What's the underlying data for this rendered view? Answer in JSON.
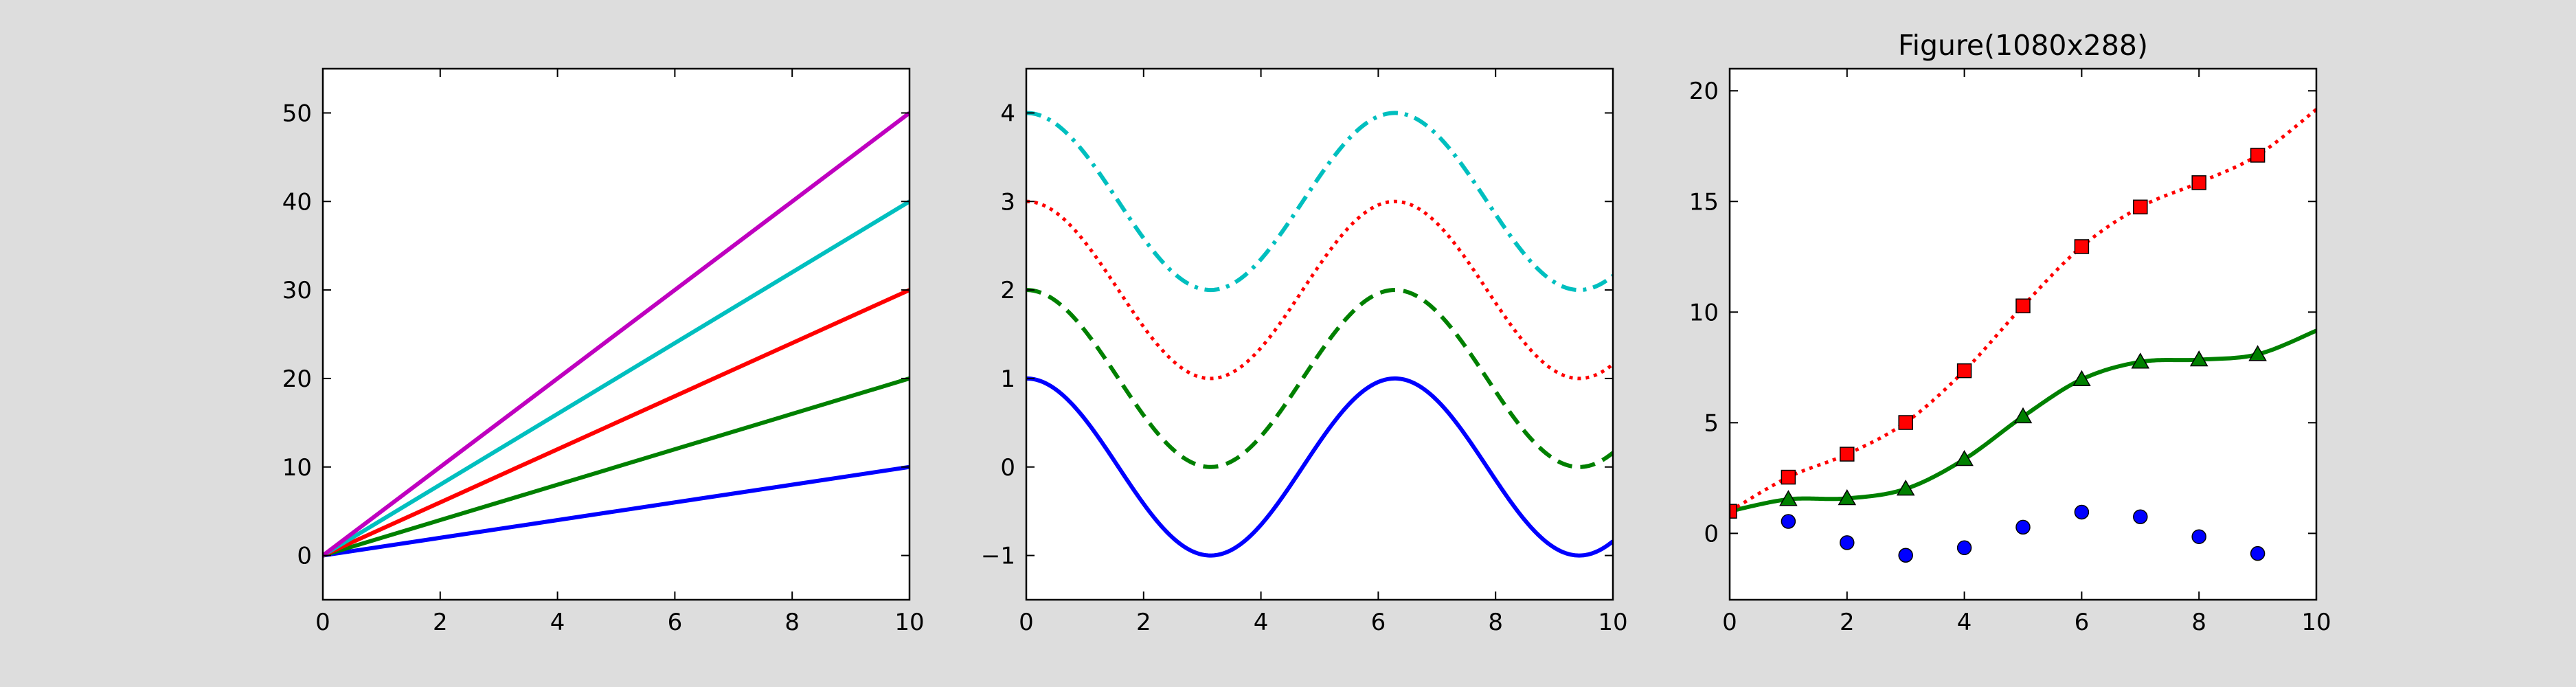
{
  "figure": {
    "background": "#dddddd",
    "axes_background": "#ffffff"
  },
  "chart_data": [
    {
      "type": "line",
      "title": "",
      "xlabel": "",
      "ylabel": "",
      "xlim": [
        0,
        10
      ],
      "ylim": [
        -5,
        55
      ],
      "xticks": [
        0,
        2,
        4,
        6,
        8,
        10
      ],
      "yticks": [
        0,
        10,
        20,
        30,
        40,
        50
      ],
      "xtick_labels": [
        "0",
        "2",
        "4",
        "6",
        "8",
        "10"
      ],
      "ytick_labels": [
        "0",
        "10",
        "20",
        "30",
        "40",
        "50"
      ],
      "grid": false,
      "legend": "none",
      "series": [
        {
          "function": "1*x",
          "x": [
            0,
            10
          ],
          "y": [
            0,
            10
          ],
          "color": "#0000ff",
          "linestyle": "solid",
          "marker": "none"
        },
        {
          "function": "2*x",
          "x": [
            0,
            10
          ],
          "y": [
            0,
            20
          ],
          "color": "#008000",
          "linestyle": "solid",
          "marker": "none"
        },
        {
          "function": "3*x",
          "x": [
            0,
            10
          ],
          "y": [
            0,
            30
          ],
          "color": "#ff0000",
          "linestyle": "solid",
          "marker": "none"
        },
        {
          "function": "4*x",
          "x": [
            0,
            10
          ],
          "y": [
            0,
            40
          ],
          "color": "#00bfbf",
          "linestyle": "solid",
          "marker": "none"
        },
        {
          "function": "5*x",
          "x": [
            0,
            10
          ],
          "y": [
            0,
            50
          ],
          "color": "#bf00bf",
          "linestyle": "solid",
          "marker": "none"
        }
      ]
    },
    {
      "type": "line",
      "title": "",
      "xlabel": "",
      "ylabel": "",
      "xlim": [
        0,
        10
      ],
      "ylim": [
        -1.5,
        4.5
      ],
      "xticks": [
        0,
        2,
        4,
        6,
        8,
        10
      ],
      "yticks": [
        -1,
        0,
        1,
        2,
        3,
        4
      ],
      "xtick_labels": [
        "0",
        "2",
        "4",
        "6",
        "8",
        "10"
      ],
      "ytick_labels": [
        "−1",
        "0",
        "1",
        "2",
        "3",
        "4"
      ],
      "grid": false,
      "legend": "none",
      "series": [
        {
          "function": "cos(x) + 0",
          "offset": 0,
          "color": "#0000ff",
          "linestyle": "solid",
          "marker": "none"
        },
        {
          "function": "cos(x) + 1",
          "offset": 1,
          "color": "#008000",
          "linestyle": "dashed",
          "marker": "none"
        },
        {
          "function": "cos(x) + 2",
          "offset": 2,
          "color": "#ff0000",
          "linestyle": "dotted",
          "marker": "none"
        },
        {
          "function": "cos(x) + 3",
          "offset": 3,
          "color": "#00bfbf",
          "linestyle": "dashdot",
          "marker": "none"
        }
      ]
    },
    {
      "type": "line",
      "title": "Figure(1080x288)",
      "xlabel": "",
      "ylabel": "",
      "xlim": [
        0,
        10
      ],
      "ylim": [
        -3,
        21
      ],
      "xticks": [
        0,
        2,
        4,
        6,
        8,
        10
      ],
      "yticks": [
        0,
        5,
        10,
        15,
        20
      ],
      "xtick_labels": [
        "0",
        "2",
        "4",
        "6",
        "8",
        "10"
      ],
      "ytick_labels": [
        "0",
        "5",
        "10",
        "15",
        "20"
      ],
      "grid": false,
      "legend": "none",
      "series": [
        {
          "color": "#0000ff",
          "linestyle": "none",
          "marker": "circle",
          "x": [
            1,
            2,
            3,
            4,
            5,
            6,
            7,
            8,
            9
          ],
          "y": [
            0.54,
            -0.42,
            -0.99,
            -0.65,
            0.28,
            0.96,
            0.75,
            -0.15,
            -0.91
          ]
        },
        {
          "color": "#008000",
          "linestyle": "solid",
          "marker": "triangle",
          "x": [
            0,
            1,
            2,
            3,
            4,
            5,
            6,
            7,
            8,
            9,
            10
          ],
          "y": [
            1.0,
            1.54,
            1.58,
            2.01,
            3.35,
            5.28,
            6.96,
            7.75,
            7.85,
            8.09,
            9.16
          ],
          "markers_x": [
            1,
            2,
            3,
            4,
            5,
            6,
            7,
            8,
            9
          ],
          "markers_y": [
            1.54,
            1.58,
            2.01,
            3.35,
            5.28,
            6.96,
            7.75,
            7.85,
            8.09
          ]
        },
        {
          "color": "#ff0000",
          "linestyle": "dotted",
          "marker": "square",
          "x": [
            0,
            1,
            2,
            3,
            4,
            5,
            6,
            7,
            8,
            9,
            10
          ],
          "y": [
            1.0,
            2.54,
            3.58,
            5.01,
            7.35,
            10.28,
            12.96,
            14.75,
            15.85,
            17.09,
            19.16
          ],
          "markers_x": [
            0,
            1,
            2,
            3,
            4,
            5,
            6,
            7,
            8,
            9
          ],
          "markers_y": [
            1.0,
            2.54,
            3.58,
            5.01,
            7.35,
            10.28,
            12.96,
            14.75,
            15.85,
            17.09
          ]
        }
      ]
    }
  ]
}
